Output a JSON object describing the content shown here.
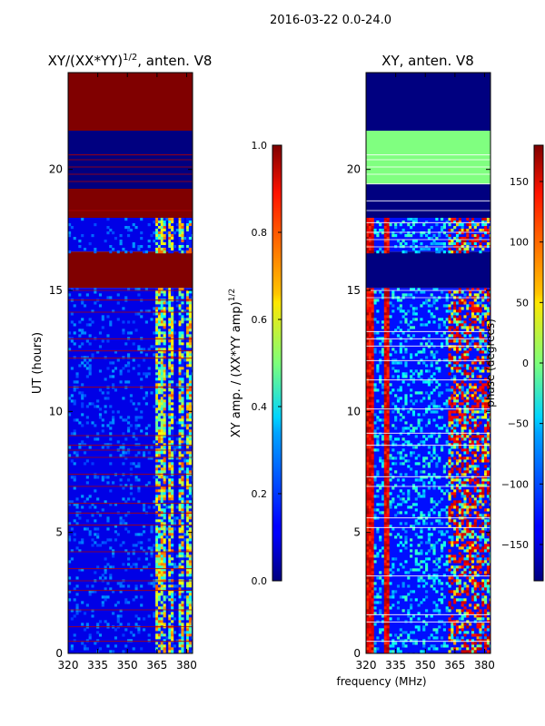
{
  "suptitle": "2016-03-22 0.0-24.0",
  "chart_data": [
    {
      "type": "heatmap",
      "title_main": "XY/(XX*YY)",
      "title_exp": "1/2",
      "title_tail": ", anten. V8",
      "ylabel": "UT (hours)",
      "xlabel": "",
      "xlim": [
        320,
        383
      ],
      "ylim": [
        0,
        24
      ],
      "xticks": [
        320,
        335,
        350,
        365,
        380
      ],
      "yticks": [
        0,
        5,
        10,
        15,
        20
      ],
      "colorbar": {
        "colormap": "jet",
        "range": [
          0.0,
          1.0
        ],
        "ticks": [
          "0.0",
          "0.2",
          "0.4",
          "0.6",
          "0.8",
          "1.0"
        ],
        "label_main": "XY amp. / (XX*YY amp)",
        "label_exp": "1/2"
      },
      "bands": [
        {
          "from": 21.6,
          "to": 24.0,
          "value": 1.0
        },
        {
          "from": 19.2,
          "to": 21.6,
          "value": 0.0
        },
        {
          "from": 18.0,
          "to": 19.2,
          "value": 1.0
        },
        {
          "from": 16.6,
          "to": 18.0,
          "value": 0.1,
          "active_bins": [
            365,
            368,
            372,
            377,
            380
          ]
        },
        {
          "from": 15.1,
          "to": 16.6,
          "value": 1.0
        },
        {
          "from": 0.0,
          "to": 15.1,
          "value": 0.1,
          "active_bins": [
            365,
            368,
            372,
            377,
            380
          ]
        }
      ]
    },
    {
      "type": "heatmap",
      "title": "XY, anten. V8",
      "xlabel": "frequency (MHz)",
      "ylabel": "",
      "xlim": [
        320,
        383
      ],
      "ylim": [
        0,
        24
      ],
      "xticks": [
        320,
        335,
        350,
        365,
        380
      ],
      "yticks": [
        0,
        5,
        10,
        15,
        20
      ],
      "colorbar": {
        "colormap": "jet",
        "range": [
          -180,
          180
        ],
        "ticks": [
          "150",
          "100",
          "50",
          "0",
          "−50",
          "−100",
          "−150"
        ],
        "label": "phase (degrees)"
      },
      "bands": [
        {
          "from": 21.6,
          "to": 24.0,
          "value": -180
        },
        {
          "from": 19.4,
          "to": 21.6,
          "value": 0
        },
        {
          "from": 18.0,
          "to": 19.4,
          "value": -180
        },
        {
          "from": 16.6,
          "to": 18.0,
          "value": -130
        },
        {
          "from": 15.1,
          "to": 16.6,
          "value": -180
        },
        {
          "from": 0.0,
          "to": 15.1,
          "value": -130
        }
      ]
    }
  ]
}
